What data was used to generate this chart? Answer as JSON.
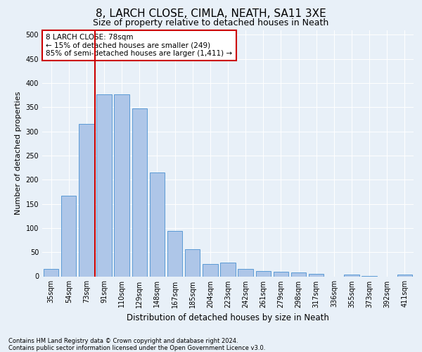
{
  "title": "8, LARCH CLOSE, CIMLA, NEATH, SA11 3XE",
  "subtitle": "Size of property relative to detached houses in Neath",
  "xlabel": "Distribution of detached houses by size in Neath",
  "ylabel": "Number of detached properties",
  "footnote1": "Contains HM Land Registry data © Crown copyright and database right 2024.",
  "footnote2": "Contains public sector information licensed under the Open Government Licence v3.0.",
  "categories": [
    "35sqm",
    "54sqm",
    "73sqm",
    "91sqm",
    "110sqm",
    "129sqm",
    "148sqm",
    "167sqm",
    "185sqm",
    "204sqm",
    "223sqm",
    "242sqm",
    "261sqm",
    "279sqm",
    "298sqm",
    "317sqm",
    "336sqm",
    "355sqm",
    "373sqm",
    "392sqm",
    "411sqm"
  ],
  "values": [
    16,
    167,
    315,
    377,
    377,
    347,
    215,
    94,
    56,
    25,
    29,
    16,
    11,
    9,
    8,
    5,
    0,
    4,
    1,
    0,
    4
  ],
  "bar_color": "#aec6e8",
  "bar_edge_color": "#5b9bd5",
  "vline_color": "#cc0000",
  "vline_pos": 2.5,
  "annotation_text": "8 LARCH CLOSE: 78sqm\n← 15% of detached houses are smaller (249)\n85% of semi-detached houses are larger (1,411) →",
  "annotation_box_color": "#ffffff",
  "annotation_box_edge": "#cc0000",
  "bg_color": "#e8f0f8",
  "ylim": [
    0,
    510
  ],
  "yticks": [
    0,
    50,
    100,
    150,
    200,
    250,
    300,
    350,
    400,
    450,
    500
  ],
  "title_fontsize": 11,
  "subtitle_fontsize": 9,
  "xlabel_fontsize": 8.5,
  "ylabel_fontsize": 8,
  "tick_fontsize": 7,
  "annotation_fontsize": 7.5,
  "footnote_fontsize": 6
}
